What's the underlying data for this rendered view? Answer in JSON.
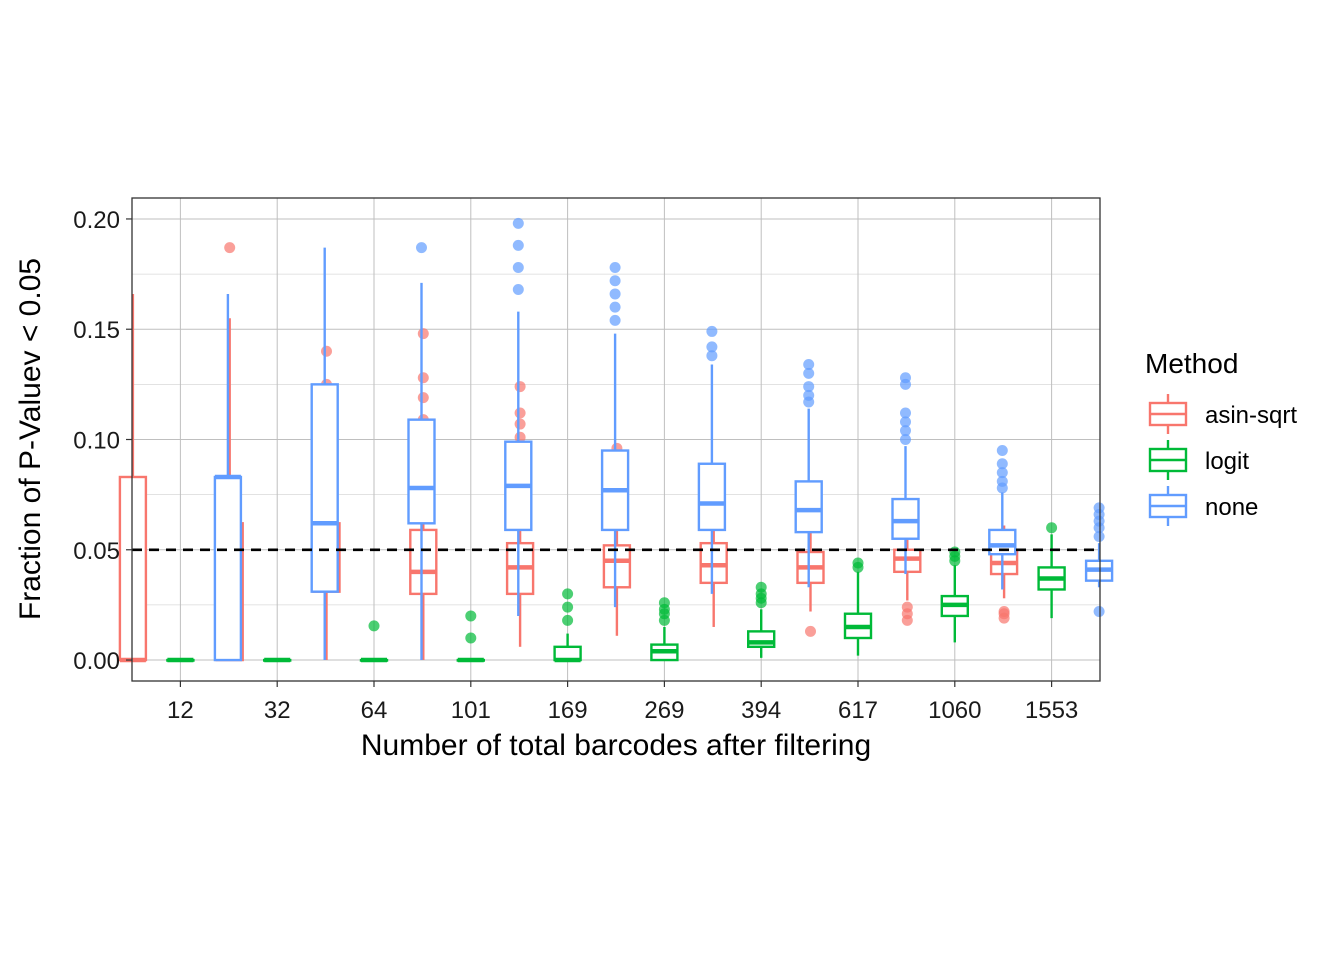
{
  "chart_data": {
    "type": "boxplot",
    "title": "",
    "xlabel": "Number of total barcodes after filtering",
    "ylabel": "Fraction of P-Valuev < 0.05",
    "ylim": [
      -0.0095,
      0.2095
    ],
    "yticks": [
      0.0,
      0.05,
      0.1,
      0.15,
      0.2
    ],
    "ytick_labels": [
      "0.00",
      "0.05",
      "0.10",
      "0.15",
      "0.20"
    ],
    "reference_line": {
      "y": 0.05,
      "style": "dashed"
    },
    "grid": true,
    "legend": {
      "title": "Method",
      "position": "right"
    },
    "categories": [
      "12",
      "32",
      "64",
      "101",
      "169",
      "269",
      "394",
      "617",
      "1060",
      "1553"
    ],
    "series": [
      {
        "name": "asin-sqrt",
        "color": "#F8766D",
        "boxes": [
          {
            "whislo": 0.0,
            "q1": 0.0,
            "med": 0.0,
            "q3": 0.083,
            "whishi": 0.166,
            "fliers": []
          },
          {
            "whislo": 0.0,
            "q1": 0.0,
            "med": 0.031,
            "q3": 0.062,
            "whishi": 0.155,
            "fliers": [
              0.187
            ]
          },
          {
            "whislo": 0.0,
            "q1": 0.031,
            "med": 0.047,
            "q3": 0.062,
            "whishi": 0.109,
            "fliers": [
              0.125,
              0.14
            ]
          },
          {
            "whislo": 0.0,
            "q1": 0.03,
            "med": 0.04,
            "q3": 0.059,
            "whishi": 0.099,
            "fliers": [
              0.109,
              0.119,
              0.128,
              0.148
            ]
          },
          {
            "whislo": 0.006,
            "q1": 0.03,
            "med": 0.042,
            "q3": 0.053,
            "whishi": 0.089,
            "fliers": [
              0.095,
              0.101,
              0.107,
              0.112,
              0.124
            ]
          },
          {
            "whislo": 0.011,
            "q1": 0.033,
            "med": 0.045,
            "q3": 0.052,
            "whishi": 0.078,
            "fliers": [
              0.086,
              0.089,
              0.096
            ]
          },
          {
            "whislo": 0.015,
            "q1": 0.035,
            "med": 0.043,
            "q3": 0.053,
            "whishi": 0.077,
            "fliers": [
              0.081,
              0.083
            ]
          },
          {
            "whislo": 0.022,
            "q1": 0.035,
            "med": 0.042,
            "q3": 0.049,
            "whishi": 0.068,
            "fliers": [
              0.013,
              0.071,
              0.073,
              0.074
            ]
          },
          {
            "whislo": 0.027,
            "q1": 0.04,
            "med": 0.046,
            "q3": 0.05,
            "whishi": 0.066,
            "fliers": [
              0.018,
              0.021,
              0.024,
              0.067,
              0.07
            ]
          },
          {
            "whislo": 0.028,
            "q1": 0.039,
            "med": 0.044,
            "q3": 0.049,
            "whishi": 0.061,
            "fliers": [
              0.019,
              0.021,
              0.022
            ]
          }
        ]
      },
      {
        "name": "logit",
        "color": "#00BA38",
        "boxes": [
          {
            "whislo": 0.0,
            "q1": 0.0,
            "med": 0.0,
            "q3": 0.0,
            "whishi": 0.0,
            "fliers": []
          },
          {
            "whislo": 0.0,
            "q1": 0.0,
            "med": 0.0,
            "q3": 0.0,
            "whishi": 0.0,
            "fliers": []
          },
          {
            "whislo": 0.0,
            "q1": 0.0,
            "med": 0.0,
            "q3": 0.0,
            "whishi": 0.0,
            "fliers": [
              0.0155
            ]
          },
          {
            "whislo": 0.0,
            "q1": 0.0,
            "med": 0.0,
            "q3": 0.0,
            "whishi": 0.0,
            "fliers": [
              0.01,
              0.02
            ]
          },
          {
            "whislo": 0.0,
            "q1": 0.0,
            "med": 0.0,
            "q3": 0.006,
            "whishi": 0.012,
            "fliers": [
              0.018,
              0.024,
              0.03
            ]
          },
          {
            "whislo": 0.0,
            "q1": 0.0,
            "med": 0.004,
            "q3": 0.007,
            "whishi": 0.015,
            "fliers": [
              0.018,
              0.021,
              0.023,
              0.026
            ]
          },
          {
            "whislo": 0.001,
            "q1": 0.006,
            "med": 0.008,
            "q3": 0.013,
            "whishi": 0.023,
            "fliers": [
              0.026,
              0.028,
              0.03,
              0.033
            ]
          },
          {
            "whislo": 0.002,
            "q1": 0.01,
            "med": 0.015,
            "q3": 0.021,
            "whishi": 0.04,
            "fliers": [
              0.042,
              0.044
            ]
          },
          {
            "whislo": 0.008,
            "q1": 0.02,
            "med": 0.025,
            "q3": 0.029,
            "whishi": 0.043,
            "fliers": [
              0.045,
              0.047,
              0.049
            ]
          },
          {
            "whislo": 0.019,
            "q1": 0.032,
            "med": 0.037,
            "q3": 0.042,
            "whishi": 0.057,
            "fliers": [
              0.06
            ]
          }
        ]
      },
      {
        "name": "none",
        "color": "#619CFF",
        "boxes": [
          {
            "whislo": 0.0,
            "q1": 0.0,
            "med": 0.083,
            "q3": 0.083,
            "whishi": 0.166,
            "fliers": []
          },
          {
            "whislo": 0.0,
            "q1": 0.031,
            "med": 0.062,
            "q3": 0.125,
            "whishi": 0.187,
            "fliers": []
          },
          {
            "whislo": 0.0,
            "q1": 0.062,
            "med": 0.078,
            "q3": 0.109,
            "whishi": 0.171,
            "fliers": [
              0.187
            ]
          },
          {
            "whislo": 0.02,
            "q1": 0.059,
            "med": 0.079,
            "q3": 0.099,
            "whishi": 0.158,
            "fliers": [
              0.168,
              0.178,
              0.188,
              0.198
            ]
          },
          {
            "whislo": 0.024,
            "q1": 0.059,
            "med": 0.077,
            "q3": 0.095,
            "whishi": 0.148,
            "fliers": [
              0.154,
              0.16,
              0.166,
              0.172,
              0.178
            ]
          },
          {
            "whislo": 0.03,
            "q1": 0.059,
            "med": 0.071,
            "q3": 0.089,
            "whishi": 0.134,
            "fliers": [
              0.138,
              0.142,
              0.149
            ]
          },
          {
            "whislo": 0.033,
            "q1": 0.058,
            "med": 0.068,
            "q3": 0.081,
            "whishi": 0.114,
            "fliers": [
              0.117,
              0.12,
              0.124,
              0.13,
              0.134
            ]
          },
          {
            "whislo": 0.039,
            "q1": 0.055,
            "med": 0.063,
            "q3": 0.073,
            "whishi": 0.097,
            "fliers": [
              0.1,
              0.104,
              0.108,
              0.112,
              0.125,
              0.128
            ]
          },
          {
            "whislo": 0.032,
            "q1": 0.048,
            "med": 0.052,
            "q3": 0.059,
            "whishi": 0.076,
            "fliers": [
              0.078,
              0.081,
              0.085,
              0.089,
              0.095
            ]
          },
          {
            "whislo": 0.033,
            "q1": 0.036,
            "med": 0.041,
            "q3": 0.045,
            "whishi": 0.053,
            "fliers": [
              0.022,
              0.056,
              0.06,
              0.063,
              0.066,
              0.069
            ]
          }
        ]
      }
    ]
  }
}
